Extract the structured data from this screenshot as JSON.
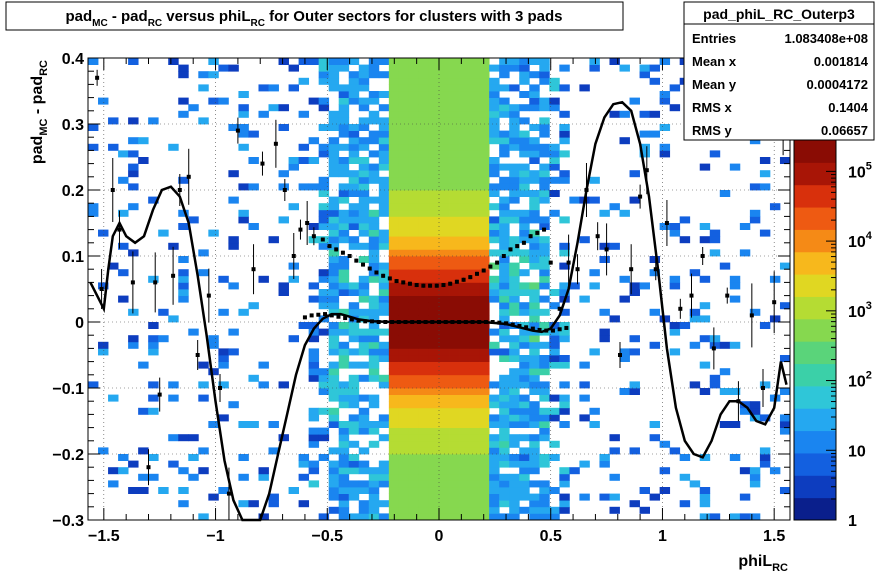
{
  "chart_data": {
    "type": "heatmap",
    "title": {
      "parts": [
        {
          "t": "pad"
        },
        {
          "t": "MC",
          "sub": true
        },
        {
          "t": " - pad"
        },
        {
          "t": "RC",
          "sub": true
        },
        {
          "t": " versus phiL"
        },
        {
          "t": "RC",
          "sub": true
        },
        {
          "t": " for Outer sectors for clusters with 3 pads"
        }
      ]
    },
    "xlabel": {
      "parts": [
        {
          "t": "phiL"
        },
        {
          "t": "RC",
          "sub": true
        }
      ]
    },
    "ylabel": {
      "parts": [
        {
          "t": "pad"
        },
        {
          "t": "MC",
          "sub": true
        },
        {
          "t": " - pad"
        },
        {
          "t": "RC",
          "sub": true
        }
      ]
    },
    "xlim": [
      -1.5708,
      1.5708
    ],
    "ylim": [
      -0.3,
      0.4
    ],
    "x_ticks": [
      {
        "v": -1.5,
        "label": "−1.5"
      },
      {
        "v": -1,
        "label": "−1"
      },
      {
        "v": -0.5,
        "label": "−0.5"
      },
      {
        "v": 0,
        "label": "0"
      },
      {
        "v": 0.5,
        "label": "0.5"
      },
      {
        "v": 1,
        "label": "1"
      },
      {
        "v": 1.5,
        "label": "1.5"
      }
    ],
    "y_ticks": [
      {
        "v": -0.3,
        "label": "−0.3"
      },
      {
        "v": -0.2,
        "label": "−0.2"
      },
      {
        "v": -0.1,
        "label": "−0.1"
      },
      {
        "v": 0,
        "label": "0"
      },
      {
        "v": 0.1,
        "label": "0.1"
      },
      {
        "v": 0.2,
        "label": "0.2"
      },
      {
        "v": 0.3,
        "label": "0.3"
      },
      {
        "v": 0.4,
        "label": "0.4"
      }
    ],
    "grid": true,
    "color_scale": {
      "log": true,
      "ticks": [
        {
          "v": 1,
          "label": "1"
        },
        {
          "v": 10,
          "label": "10"
        },
        {
          "v": 100,
          "label": "10",
          "sup": "2"
        },
        {
          "v": 1000,
          "label": "10",
          "sup": "3"
        },
        {
          "v": 10000,
          "label": "10",
          "sup": "4"
        },
        {
          "v": 100000,
          "label": "10",
          "sup": "5"
        }
      ],
      "colors": [
        "#0a1f8c",
        "#0d3dbf",
        "#1360e0",
        "#1a85f0",
        "#25a8f0",
        "#2fc6d8",
        "#3bd0a8",
        "#5ad47a",
        "#86d84f",
        "#b5dc33",
        "#e0d722",
        "#f7b81c",
        "#f58a16",
        "#ee5a12",
        "#d8300c",
        "#a81506",
        "#8a0c04"
      ]
    },
    "stats": {
      "name": "pad_phiL_RC_Outerp3",
      "rows": [
        {
          "label": "Entries",
          "value": "1.083408e+08"
        },
        {
          "label": "Mean x",
          "value": "0.001814"
        },
        {
          "label": "Mean y",
          "value": "0.0004172"
        },
        {
          "label": "RMS x",
          "value": "0.1404"
        },
        {
          "label": "RMS y",
          "value": "0.06657"
        }
      ]
    },
    "profile_rms_points": [
      [
        -1.53,
        0.37
      ],
      [
        -1.51,
        0.05
      ],
      [
        -1.46,
        0.2
      ],
      [
        -1.43,
        0.14
      ],
      [
        -1.37,
        0.06
      ],
      [
        -1.3,
        -0.22
      ],
      [
        -1.27,
        0.06
      ],
      [
        -1.25,
        -0.11
      ],
      [
        -1.19,
        0.07
      ],
      [
        -1.16,
        0.2
      ],
      [
        -1.12,
        0.22
      ],
      [
        -1.08,
        -0.05
      ],
      [
        -1.03,
        0.04
      ],
      [
        -0.98,
        -0.1
      ],
      [
        -0.94,
        -0.26
      ],
      [
        -0.9,
        0.29
      ],
      [
        -0.83,
        0.08
      ],
      [
        -0.79,
        0.24
      ],
      [
        -0.73,
        0.27
      ],
      [
        -0.69,
        0.2
      ],
      [
        -0.65,
        0.1
      ],
      [
        -0.62,
        0.14
      ],
      [
        -0.59,
        0.15
      ],
      [
        -0.56,
        0.13
      ],
      [
        -0.52,
        0.125
      ],
      [
        -0.49,
        0.115
      ],
      [
        -0.46,
        0.11
      ],
      [
        -0.43,
        0.105
      ],
      [
        -0.4,
        0.1
      ],
      [
        -0.37,
        0.093
      ],
      [
        -0.34,
        0.087
      ],
      [
        -0.31,
        0.081
      ],
      [
        -0.28,
        0.075
      ],
      [
        -0.25,
        0.07
      ],
      [
        -0.22,
        0.066
      ],
      [
        -0.19,
        0.062
      ],
      [
        -0.16,
        0.06
      ],
      [
        -0.13,
        0.058
      ],
      [
        -0.1,
        0.056
      ],
      [
        -0.07,
        0.055
      ],
      [
        -0.04,
        0.055
      ],
      [
        -0.01,
        0.055
      ],
      [
        0.02,
        0.056
      ],
      [
        0.05,
        0.058
      ],
      [
        0.08,
        0.061
      ],
      [
        0.11,
        0.064
      ],
      [
        0.14,
        0.068
      ],
      [
        0.17,
        0.073
      ],
      [
        0.2,
        0.078
      ],
      [
        0.23,
        0.084
      ],
      [
        0.26,
        0.09
      ],
      [
        0.29,
        0.1
      ],
      [
        0.32,
        0.11
      ],
      [
        0.35,
        0.115
      ],
      [
        0.38,
        0.12
      ],
      [
        0.41,
        0.13
      ],
      [
        0.44,
        0.135
      ],
      [
        0.47,
        0.14
      ],
      [
        0.5,
        0.09
      ],
      [
        0.54,
        0.02
      ],
      [
        0.58,
        0.09
      ],
      [
        0.62,
        0.08
      ],
      [
        0.66,
        0.2
      ],
      [
        0.71,
        0.13
      ],
      [
        0.75,
        0.11
      ],
      [
        0.81,
        -0.05
      ],
      [
        0.86,
        0.08
      ],
      [
        0.9,
        0.19
      ],
      [
        0.93,
        0.23
      ],
      [
        0.97,
        0.08
      ],
      [
        1.02,
        0.15
      ],
      [
        1.08,
        0.02
      ],
      [
        1.13,
        0.04
      ],
      [
        1.18,
        0.1
      ],
      [
        1.23,
        -0.04
      ],
      [
        1.29,
        0.04
      ],
      [
        1.34,
        -0.12
      ],
      [
        1.4,
        0.01
      ],
      [
        1.45,
        -0.1
      ],
      [
        1.5,
        0.03
      ],
      [
        1.54,
        0.28
      ]
    ],
    "profile_mean_points": [
      [
        -0.6,
        0.007
      ],
      [
        -0.57,
        0.01
      ],
      [
        -0.54,
        0.011
      ],
      [
        -0.51,
        0.012
      ],
      [
        -0.48,
        0.01
      ],
      [
        -0.45,
        0.008
      ],
      [
        -0.42,
        0.006
      ],
      [
        -0.39,
        0.004
      ],
      [
        -0.36,
        0.002
      ],
      [
        -0.33,
        0.001
      ],
      [
        -0.3,
        0.001
      ],
      [
        -0.27,
        0.0
      ],
      [
        -0.24,
        0.0
      ],
      [
        -0.21,
        0.0
      ],
      [
        -0.18,
        0.0
      ],
      [
        -0.15,
        0.0
      ],
      [
        -0.12,
        0.0
      ],
      [
        -0.09,
        0.0
      ],
      [
        -0.06,
        0.0
      ],
      [
        -0.03,
        0.0
      ],
      [
        0.0,
        0.0
      ],
      [
        0.03,
        0.0
      ],
      [
        0.06,
        0.0
      ],
      [
        0.09,
        0.0
      ],
      [
        0.12,
        0.0
      ],
      [
        0.15,
        0.0
      ],
      [
        0.18,
        0.0
      ],
      [
        0.21,
        0.0
      ],
      [
        0.24,
        0.0
      ],
      [
        0.27,
        -0.001
      ],
      [
        0.3,
        -0.002
      ],
      [
        0.33,
        -0.004
      ],
      [
        0.36,
        -0.006
      ],
      [
        0.39,
        -0.008
      ],
      [
        0.42,
        -0.01
      ],
      [
        0.45,
        -0.012
      ],
      [
        0.48,
        -0.013
      ],
      [
        0.51,
        -0.013
      ],
      [
        0.54,
        -0.011
      ],
      [
        0.57,
        -0.009
      ]
    ],
    "fit_curve": [
      [
        -1.56,
        0.06
      ],
      [
        -1.53,
        0.04
      ],
      [
        -1.5,
        0.02
      ],
      [
        -1.48,
        0.08
      ],
      [
        -1.46,
        0.13
      ],
      [
        -1.43,
        0.15
      ],
      [
        -1.4,
        0.13
      ],
      [
        -1.36,
        0.12
      ],
      [
        -1.32,
        0.13
      ],
      [
        -1.28,
        0.17
      ],
      [
        -1.24,
        0.2
      ],
      [
        -1.2,
        0.205
      ],
      [
        -1.16,
        0.19
      ],
      [
        -1.12,
        0.15
      ],
      [
        -1.08,
        0.07
      ],
      [
        -1.04,
        -0.02
      ],
      [
        -1.0,
        -0.12
      ],
      [
        -0.96,
        -0.21
      ],
      [
        -0.92,
        -0.27
      ],
      [
        -0.88,
        -0.305
      ],
      [
        -0.84,
        -0.31
      ],
      [
        -0.8,
        -0.3
      ],
      [
        -0.76,
        -0.26
      ],
      [
        -0.72,
        -0.2
      ],
      [
        -0.68,
        -0.14
      ],
      [
        -0.64,
        -0.08
      ],
      [
        -0.6,
        -0.035
      ],
      [
        -0.56,
        -0.01
      ],
      [
        -0.52,
        0.005
      ],
      [
        -0.48,
        0.012
      ],
      [
        -0.44,
        0.012
      ],
      [
        -0.4,
        0.008
      ],
      [
        -0.36,
        0.004
      ],
      [
        -0.3,
        0.001
      ],
      [
        -0.2,
        0.0
      ],
      [
        -0.1,
        0.0
      ],
      [
        0.0,
        0.0
      ],
      [
        0.1,
        0.0
      ],
      [
        0.2,
        0.0
      ],
      [
        0.3,
        -0.003
      ],
      [
        0.36,
        -0.008
      ],
      [
        0.42,
        -0.013
      ],
      [
        0.46,
        -0.015
      ],
      [
        0.5,
        -0.01
      ],
      [
        0.54,
        0.01
      ],
      [
        0.58,
        0.05
      ],
      [
        0.62,
        0.12
      ],
      [
        0.66,
        0.2
      ],
      [
        0.7,
        0.27
      ],
      [
        0.74,
        0.31
      ],
      [
        0.78,
        0.33
      ],
      [
        0.82,
        0.333
      ],
      [
        0.86,
        0.32
      ],
      [
        0.9,
        0.27
      ],
      [
        0.94,
        0.19
      ],
      [
        0.98,
        0.08
      ],
      [
        1.02,
        -0.04
      ],
      [
        1.06,
        -0.13
      ],
      [
        1.1,
        -0.18
      ],
      [
        1.14,
        -0.2
      ],
      [
        1.18,
        -0.205
      ],
      [
        1.22,
        -0.18
      ],
      [
        1.26,
        -0.14
      ],
      [
        1.3,
        -0.12
      ],
      [
        1.34,
        -0.12
      ],
      [
        1.38,
        -0.13
      ],
      [
        1.42,
        -0.15
      ],
      [
        1.46,
        -0.155
      ],
      [
        1.5,
        -0.13
      ],
      [
        1.53,
        -0.06
      ],
      [
        1.555,
        -0.095
      ]
    ]
  }
}
